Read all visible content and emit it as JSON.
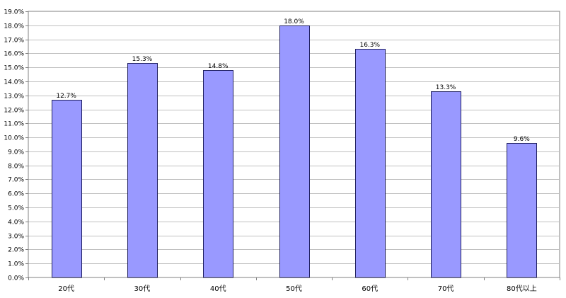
{
  "chart_data": {
    "type": "bar",
    "categories": [
      "20代",
      "30代",
      "40代",
      "50代",
      "60代",
      "70代",
      "80代以上"
    ],
    "values": [
      12.7,
      15.3,
      14.8,
      18.0,
      16.3,
      13.3,
      9.6
    ],
    "data_labels": [
      "12.7%",
      "15.3%",
      "14.8%",
      "18.0%",
      "16.3%",
      "13.3%",
      "9.6%"
    ],
    "ylim": [
      0,
      19
    ],
    "ytick_step": 1,
    "ytick_format": "%",
    "grid": true,
    "legend": "none",
    "colors": {
      "bar_fill": "#9999ff",
      "bar_stroke": "#1f1f5f",
      "grid": "#c0c0c0",
      "axis": "#808080"
    }
  }
}
